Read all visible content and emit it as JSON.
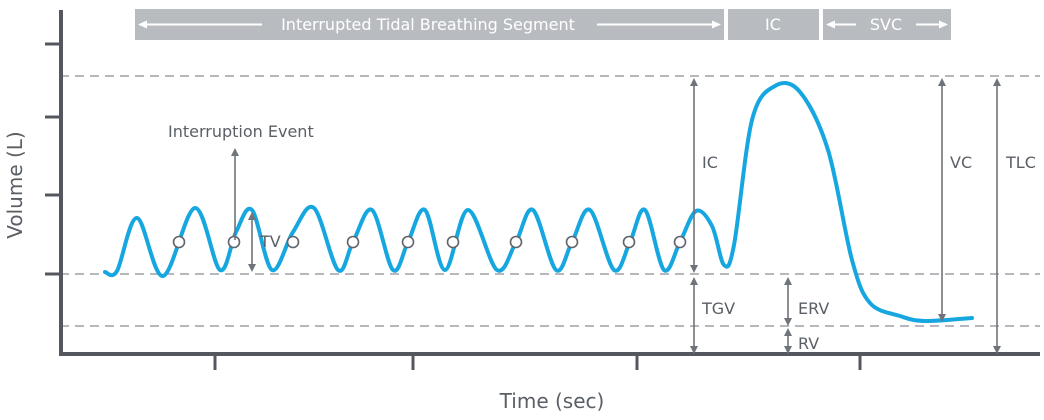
{
  "axes": {
    "y_label": "Volume (L)",
    "x_label": "Time (sec)"
  },
  "segments": {
    "tidal": "Interrupted Tidal Breathing Segment",
    "ic": "IC",
    "svc": "SVC"
  },
  "annotations": {
    "interruption_event": "Interruption Event",
    "tv": "TV",
    "ic": "IC",
    "vc": "VC",
    "tlc": "TLC",
    "tgv": "TGV",
    "erv": "ERV",
    "rv": "RV"
  },
  "colors": {
    "trace": "#17a7e0",
    "segment_bar": "#b8bcc1",
    "axis": "#54585e",
    "text": "#5a5f66",
    "dashed": "#8a8e93"
  }
}
